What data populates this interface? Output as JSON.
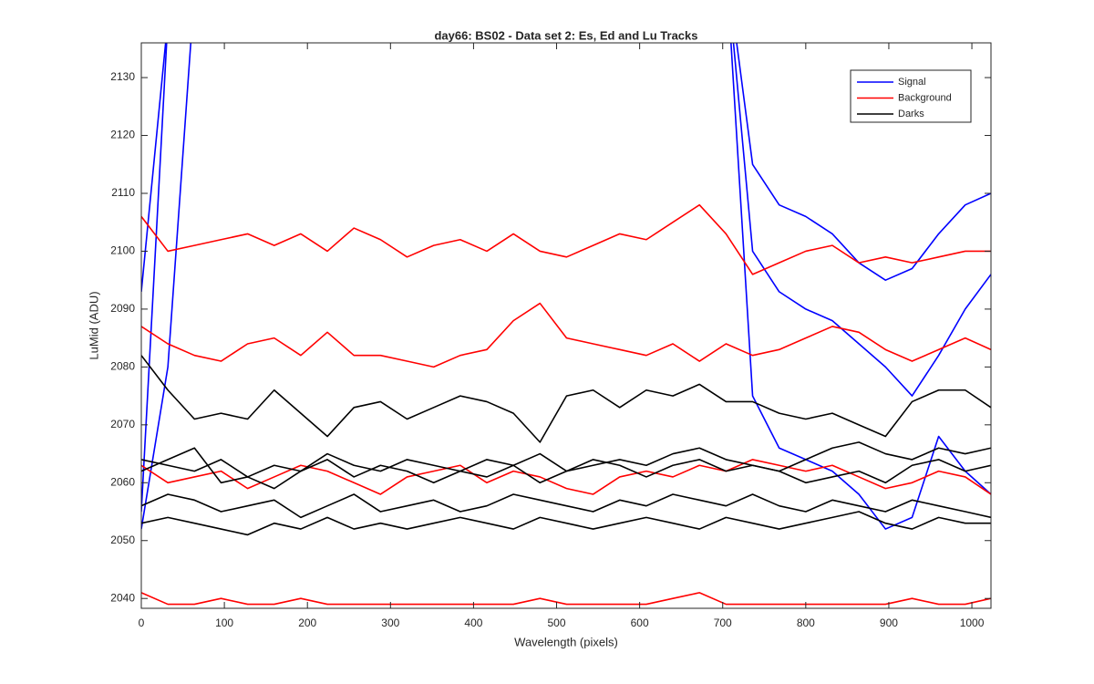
{
  "chart_data": {
    "type": "line",
    "title": "day66: BS02 - Data set 2: Es, Ed and Lu Tracks",
    "xlabel": "Wavelength (pixels)",
    "ylabel": "LuMid (ADU)",
    "x": [
      0,
      32,
      64,
      96,
      128,
      160,
      192,
      224,
      256,
      288,
      320,
      352,
      384,
      416,
      448,
      480,
      512,
      544,
      576,
      608,
      640,
      672,
      704,
      736,
      768,
      800,
      832,
      864,
      896,
      928,
      960,
      992,
      1023
    ],
    "xlim": [
      0,
      1023
    ],
    "ylim": [
      2038.3,
      2136
    ],
    "xticks": [
      0,
      100,
      200,
      300,
      400,
      500,
      600,
      700,
      800,
      900,
      1000
    ],
    "yticks": [
      2040,
      2050,
      2060,
      2070,
      2080,
      2090,
      2100,
      2110,
      2120,
      2130
    ],
    "legend": "upper right",
    "grid": false,
    "series": [
      {
        "name": "Signal",
        "color": "#0000ff",
        "lines": [
          [
            2093,
            2140,
            null,
            null,
            null,
            null,
            null,
            null,
            null,
            null,
            null,
            null,
            null,
            null,
            null,
            null,
            null,
            null,
            null,
            null,
            null,
            null,
            2150,
            2115,
            2108,
            2106,
            2103,
            2098,
            2095,
            2097,
            2103,
            2108,
            2110
          ],
          [
            2055,
            2140,
            null,
            null,
            null,
            null,
            null,
            null,
            null,
            null,
            null,
            null,
            null,
            null,
            null,
            null,
            null,
            null,
            null,
            null,
            null,
            null,
            2150,
            2100,
            2093,
            2090,
            2088,
            2084,
            2080,
            2075,
            2082,
            2090,
            2096
          ],
          [
            2052,
            2080,
            2145,
            null,
            null,
            null,
            null,
            null,
            null,
            null,
            null,
            null,
            null,
            null,
            null,
            null,
            null,
            null,
            null,
            null,
            null,
            null,
            2150,
            2075,
            2066,
            2064,
            2062,
            2058,
            2052,
            2054,
            2068,
            2062,
            2058
          ]
        ]
      },
      {
        "name": "Background",
        "color": "#ff0000",
        "lines": [
          [
            2106,
            2100,
            2101,
            2102,
            2103,
            2101,
            2103,
            2100,
            2104,
            2102,
            2099,
            2101,
            2102,
            2100,
            2103,
            2100,
            2099,
            2101,
            2103,
            2102,
            2105,
            2108,
            2103,
            2096,
            2098,
            2100,
            2101,
            2098,
            2099,
            2098,
            2099,
            2100,
            2100
          ],
          [
            2087,
            2084,
            2082,
            2081,
            2084,
            2085,
            2082,
            2086,
            2082,
            2082,
            2081,
            2080,
            2082,
            2083,
            2088,
            2091,
            2085,
            2084,
            2083,
            2082,
            2084,
            2081,
            2084,
            2082,
            2083,
            2085,
            2087,
            2086,
            2083,
            2081,
            2083,
            2085,
            2083
          ],
          [
            2063,
            2060,
            2061,
            2062,
            2059,
            2061,
            2063,
            2062,
            2060,
            2058,
            2061,
            2062,
            2063,
            2060,
            2062,
            2061,
            2059,
            2058,
            2061,
            2062,
            2061,
            2063,
            2062,
            2064,
            2063,
            2062,
            2063,
            2061,
            2059,
            2060,
            2062,
            2061,
            2058
          ],
          [
            2041,
            2039,
            2039,
            2040,
            2039,
            2039,
            2040,
            2039,
            2039,
            2039,
            2039,
            2039,
            2039,
            2039,
            2039,
            2040,
            2039,
            2039,
            2039,
            2039,
            2040,
            2041,
            2039,
            2039,
            2039,
            2039,
            2039,
            2039,
            2039,
            2040,
            2039,
            2039,
            2040
          ]
        ]
      },
      {
        "name": "Darks",
        "color": "#000000",
        "lines": [
          [
            2082,
            2076,
            2071,
            2072,
            2071,
            2076,
            2072,
            2068,
            2073,
            2074,
            2071,
            2073,
            2075,
            2074,
            2072,
            2067,
            2075,
            2076,
            2073,
            2076,
            2075,
            2077,
            2074,
            2074,
            2072,
            2071,
            2072,
            2070,
            2068,
            2074,
            2076,
            2076,
            2073
          ],
          [
            2064,
            2063,
            2062,
            2064,
            2061,
            2063,
            2062,
            2065,
            2063,
            2062,
            2064,
            2063,
            2062,
            2064,
            2063,
            2065,
            2062,
            2063,
            2064,
            2063,
            2065,
            2066,
            2064,
            2063,
            2062,
            2064,
            2066,
            2067,
            2065,
            2064,
            2066,
            2065,
            2066
          ],
          [
            2062,
            2064,
            2066,
            2060,
            2061,
            2059,
            2062,
            2064,
            2061,
            2063,
            2062,
            2060,
            2062,
            2061,
            2063,
            2060,
            2062,
            2064,
            2063,
            2061,
            2063,
            2064,
            2062,
            2063,
            2062,
            2060,
            2061,
            2062,
            2060,
            2063,
            2064,
            2062,
            2063
          ],
          [
            2056,
            2058,
            2057,
            2055,
            2056,
            2057,
            2054,
            2056,
            2058,
            2055,
            2056,
            2057,
            2055,
            2056,
            2058,
            2057,
            2056,
            2055,
            2057,
            2056,
            2058,
            2057,
            2056,
            2058,
            2056,
            2055,
            2057,
            2056,
            2055,
            2057,
            2056,
            2055,
            2054
          ],
          [
            2053,
            2054,
            2053,
            2052,
            2051,
            2053,
            2052,
            2054,
            2052,
            2053,
            2052,
            2053,
            2054,
            2053,
            2052,
            2054,
            2053,
            2052,
            2053,
            2054,
            2053,
            2052,
            2054,
            2053,
            2052,
            2053,
            2054,
            2055,
            2053,
            2052,
            2054,
            2053,
            2053
          ]
        ]
      }
    ]
  }
}
